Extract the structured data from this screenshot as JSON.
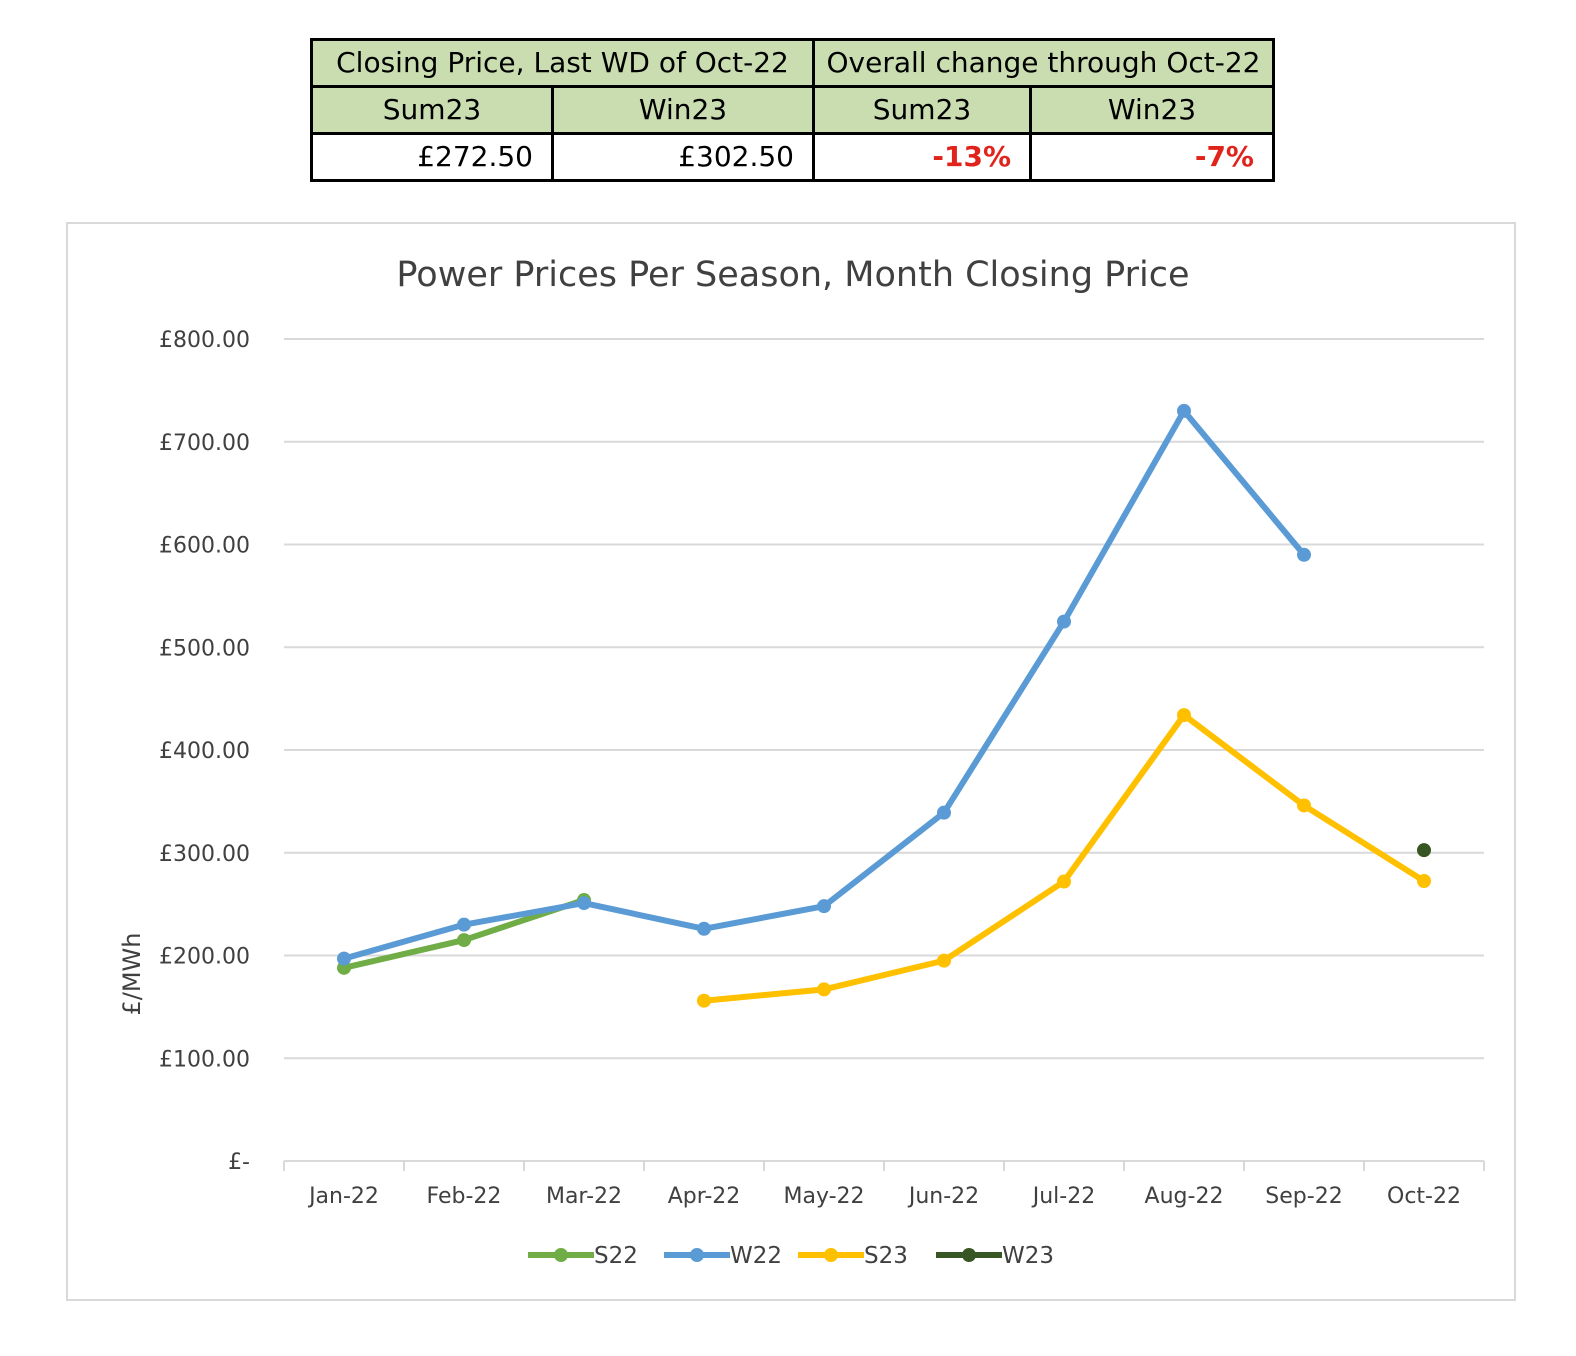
{
  "summary_table": {
    "header_row1": [
      "Closing Price, Last WD of Oct-22",
      "Overall change through Oct-22"
    ],
    "header_row2": [
      "Sum23",
      "Win23",
      "Sum23",
      "Win23"
    ],
    "values": [
      "£272.50",
      "£302.50",
      "-13%",
      "-7%"
    ],
    "negative_color": "#e0241c",
    "header_bg": "#c9ddb0"
  },
  "chart_data": {
    "type": "line",
    "title": "Power Prices Per Season, Month Closing Price",
    "xlabel": "",
    "ylabel": "£/MWh",
    "categories": [
      "Jan-22",
      "Feb-22",
      "Mar-22",
      "Apr-22",
      "May-22",
      "Jun-22",
      "Jul-22",
      "Aug-22",
      "Sep-22",
      "Oct-22"
    ],
    "ylim": [
      0,
      800
    ],
    "yticks": [
      0,
      100,
      200,
      300,
      400,
      500,
      600,
      700,
      800
    ],
    "ytick_labels": [
      "£-",
      "£100.00",
      "£200.00",
      "£300.00",
      "£400.00",
      "£500.00",
      "£600.00",
      "£700.00",
      "£800.00"
    ],
    "grid": true,
    "legend_position": "bottom",
    "series": [
      {
        "name": "S22",
        "color": "#70ad47",
        "values": [
          188,
          215,
          254,
          null,
          null,
          null,
          null,
          null,
          null,
          null
        ]
      },
      {
        "name": "W22",
        "color": "#5b9bd5",
        "values": [
          197,
          230,
          251,
          226,
          248,
          339,
          525,
          730,
          590,
          null
        ]
      },
      {
        "name": "S23",
        "color": "#ffc000",
        "values": [
          null,
          null,
          null,
          156,
          167,
          195,
          272,
          434,
          346,
          272.5
        ]
      },
      {
        "name": "W23",
        "color": "#375623",
        "values": [
          null,
          null,
          null,
          null,
          null,
          null,
          null,
          null,
          null,
          302.5
        ]
      }
    ]
  }
}
